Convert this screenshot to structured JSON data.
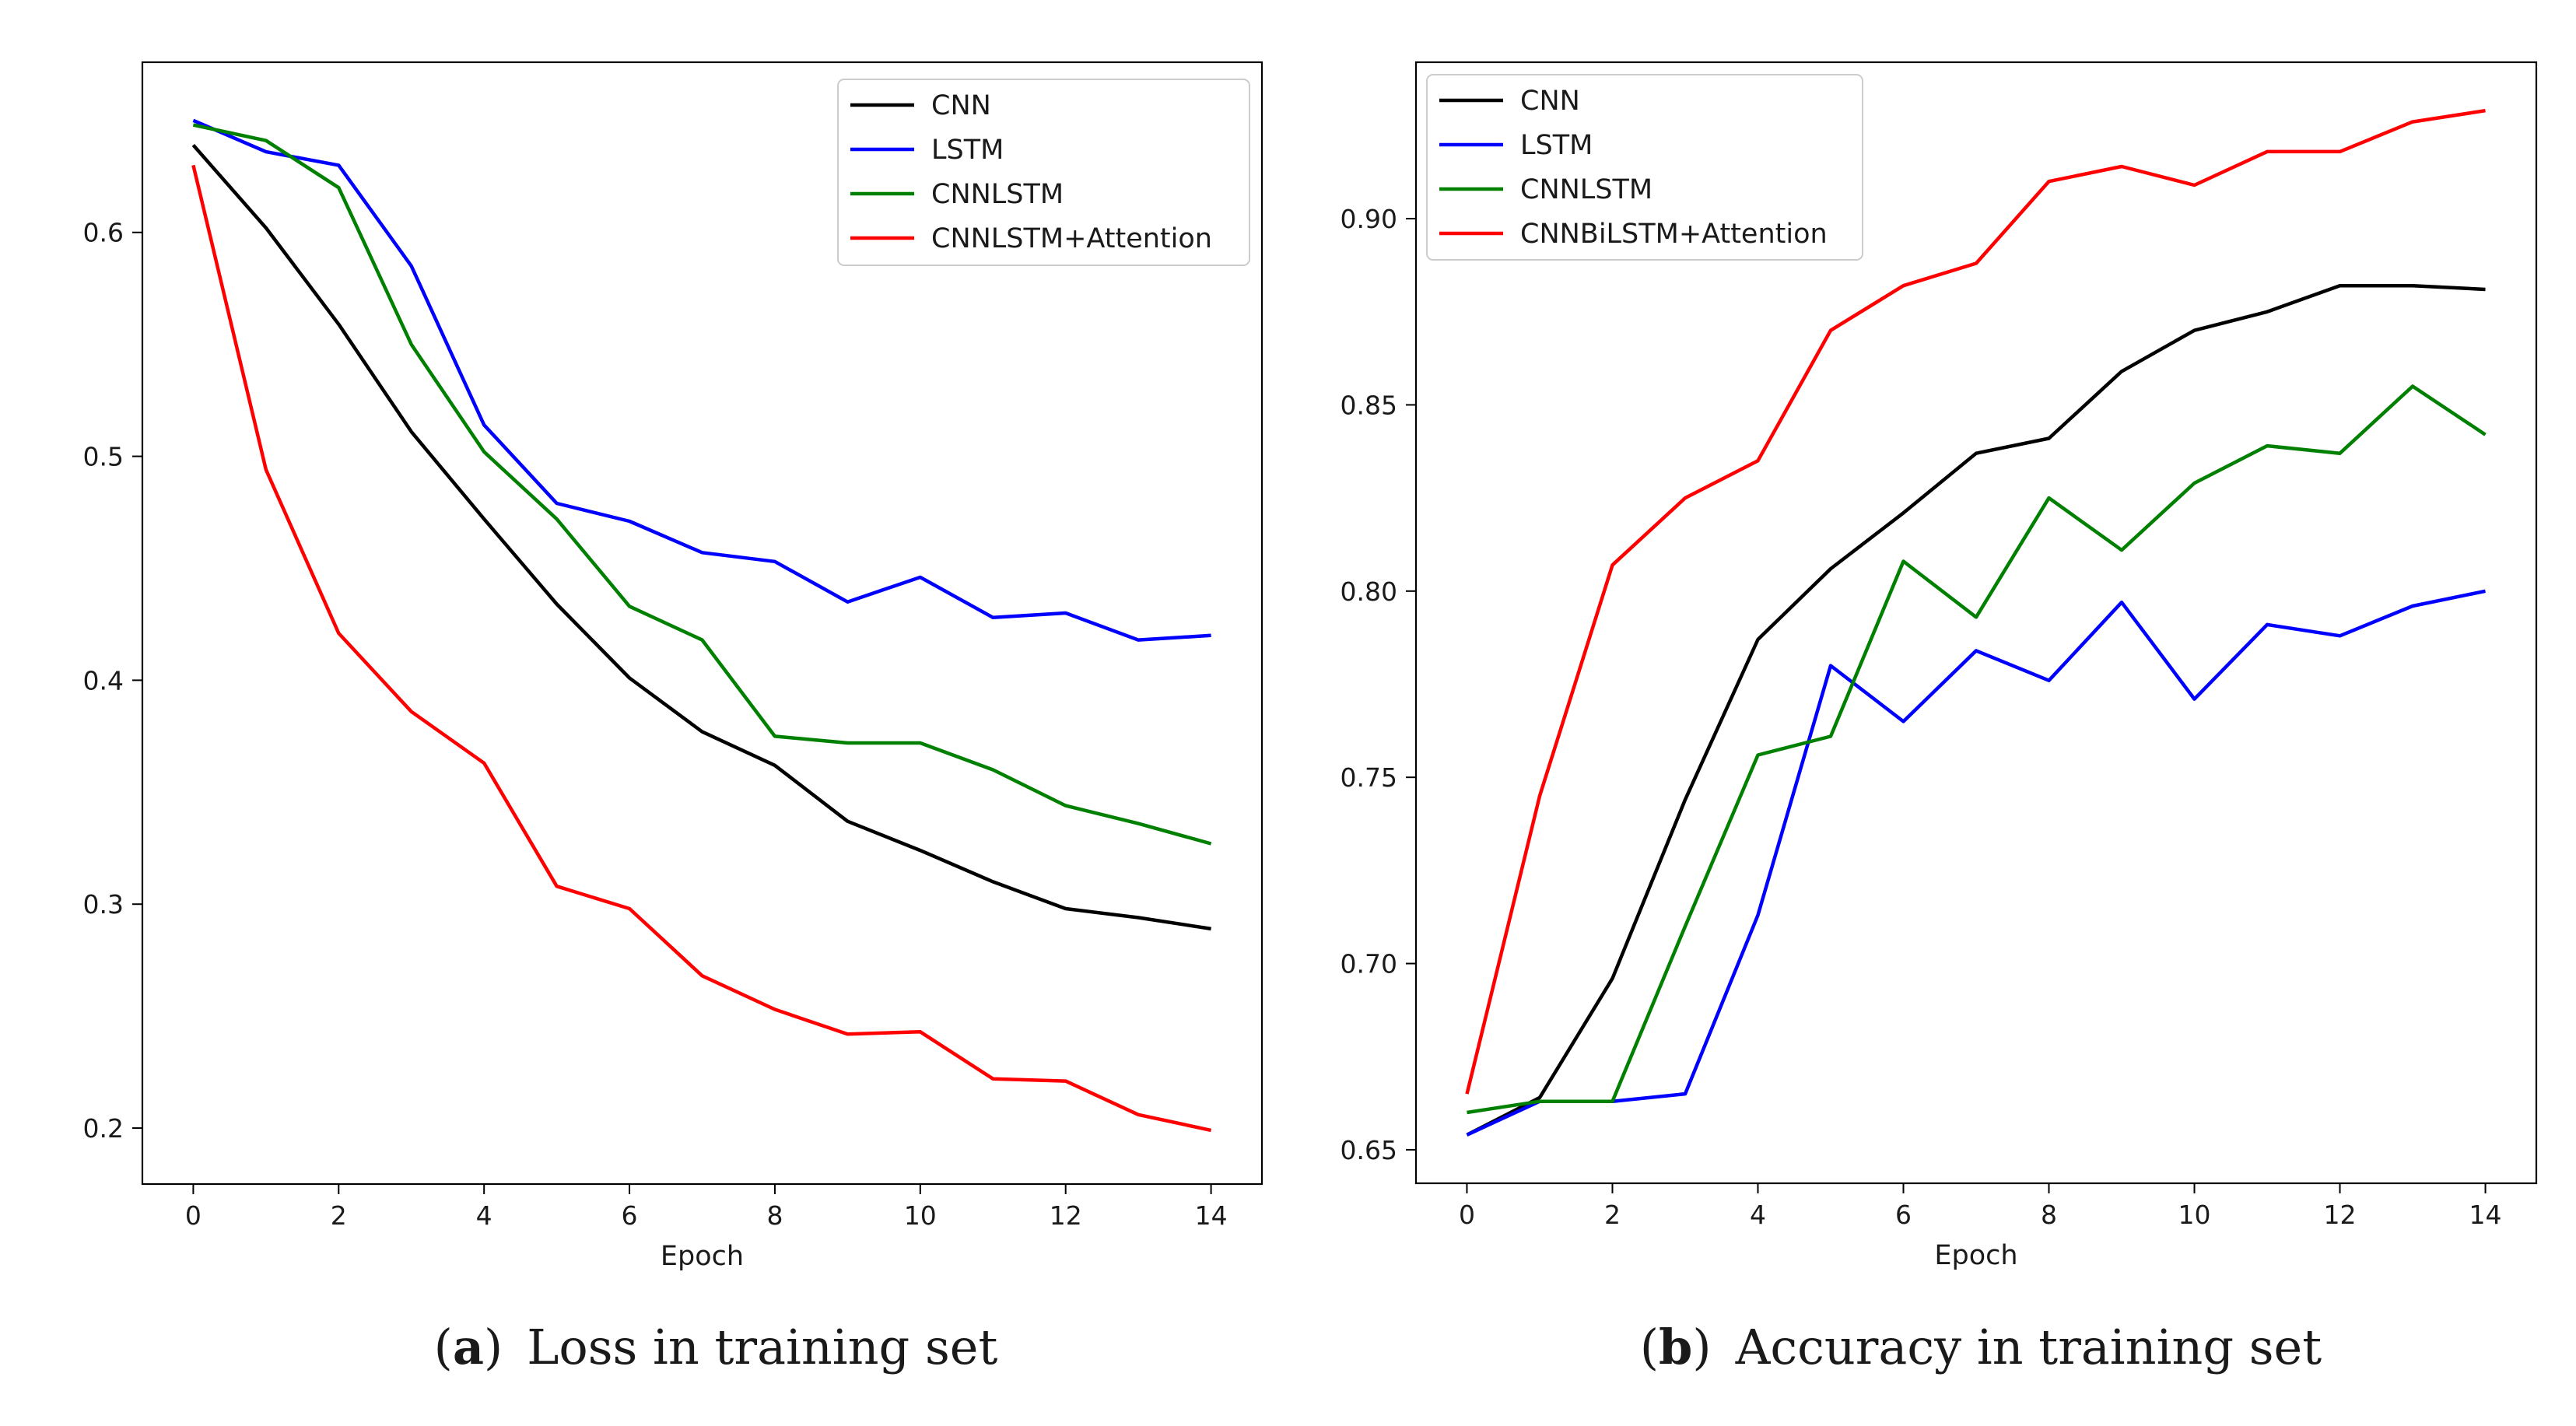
{
  "colors": {
    "CNN": "#000000",
    "LSTM": "#0000ff",
    "CNNLSTM": "#008000",
    "ATT": "#ff0000"
  },
  "chart_data": [
    {
      "type": "line",
      "id": "a",
      "caption_letter": "a",
      "caption_text": "Loss in training set",
      "xlabel": "Epoch",
      "ylabel": "",
      "xlim": [
        -0.7,
        14.7
      ],
      "ylim": [
        0.175,
        0.676
      ],
      "xticks": [
        0,
        2,
        4,
        6,
        8,
        10,
        12,
        14
      ],
      "yticks": [
        0.2,
        0.3,
        0.4,
        0.5,
        0.6
      ],
      "ytick_labels": [
        "0.2",
        "0.3",
        "0.4",
        "0.5",
        "0.6"
      ],
      "legend_position": "top-right",
      "x": [
        0,
        1,
        2,
        3,
        4,
        5,
        6,
        7,
        8,
        9,
        10,
        11,
        12,
        13,
        14
      ],
      "series": [
        {
          "name": "CNN",
          "color_key": "CNN",
          "values": [
            0.639,
            0.602,
            0.559,
            0.511,
            0.472,
            0.434,
            0.401,
            0.377,
            0.362,
            0.337,
            0.324,
            0.31,
            0.298,
            0.294,
            0.289
          ]
        },
        {
          "name": "LSTM",
          "color_key": "LSTM",
          "values": [
            0.65,
            0.636,
            0.63,
            0.585,
            0.514,
            0.479,
            0.471,
            0.457,
            0.453,
            0.435,
            0.446,
            0.428,
            0.43,
            0.418,
            0.42
          ]
        },
        {
          "name": "CNNLSTM",
          "color_key": "CNNLSTM",
          "values": [
            0.648,
            0.641,
            0.62,
            0.55,
            0.502,
            0.472,
            0.433,
            0.418,
            0.375,
            0.372,
            0.372,
            0.36,
            0.344,
            0.336,
            0.327
          ]
        },
        {
          "name": "CNNLSTM+Attention",
          "color_key": "ATT",
          "values": [
            0.63,
            0.494,
            0.421,
            0.386,
            0.363,
            0.308,
            0.298,
            0.268,
            0.253,
            0.242,
            0.243,
            0.222,
            0.221,
            0.206,
            0.199
          ]
        }
      ]
    },
    {
      "type": "line",
      "id": "b",
      "caption_letter": "b",
      "caption_text": "Accuracy in training set",
      "xlabel": "Epoch",
      "ylabel": "",
      "xlim": [
        -0.7,
        14.7
      ],
      "ylim": [
        0.641,
        0.942
      ],
      "xticks": [
        0,
        2,
        4,
        6,
        8,
        10,
        12,
        14
      ],
      "yticks": [
        0.65,
        0.7,
        0.75,
        0.8,
        0.85,
        0.9
      ],
      "ytick_labels": [
        "0.65",
        "0.70",
        "0.75",
        "0.80",
        "0.85",
        "0.90"
      ],
      "legend_position": "top-left",
      "x": [
        0,
        1,
        2,
        3,
        4,
        5,
        6,
        7,
        8,
        9,
        10,
        11,
        12,
        13,
        14
      ],
      "series": [
        {
          "name": "CNN",
          "color_key": "CNN",
          "values": [
            0.654,
            0.664,
            0.696,
            0.744,
            0.787,
            0.806,
            0.821,
            0.837,
            0.841,
            0.859,
            0.87,
            0.875,
            0.882,
            0.882,
            0.881
          ]
        },
        {
          "name": "LSTM",
          "color_key": "LSTM",
          "values": [
            0.654,
            0.663,
            0.663,
            0.665,
            0.713,
            0.78,
            0.765,
            0.784,
            0.776,
            0.797,
            0.771,
            0.791,
            0.788,
            0.796,
            0.8
          ]
        },
        {
          "name": "CNNLSTM",
          "color_key": "CNNLSTM",
          "values": [
            0.66,
            0.663,
            0.663,
            0.71,
            0.756,
            0.761,
            0.808,
            0.793,
            0.825,
            0.811,
            0.829,
            0.839,
            0.837,
            0.855,
            0.842
          ]
        },
        {
          "name": "CNNBiLSTM+Attention",
          "color_key": "ATT",
          "values": [
            0.665,
            0.745,
            0.807,
            0.825,
            0.835,
            0.87,
            0.882,
            0.888,
            0.91,
            0.914,
            0.909,
            0.918,
            0.918,
            0.926,
            0.929
          ]
        }
      ]
    }
  ]
}
